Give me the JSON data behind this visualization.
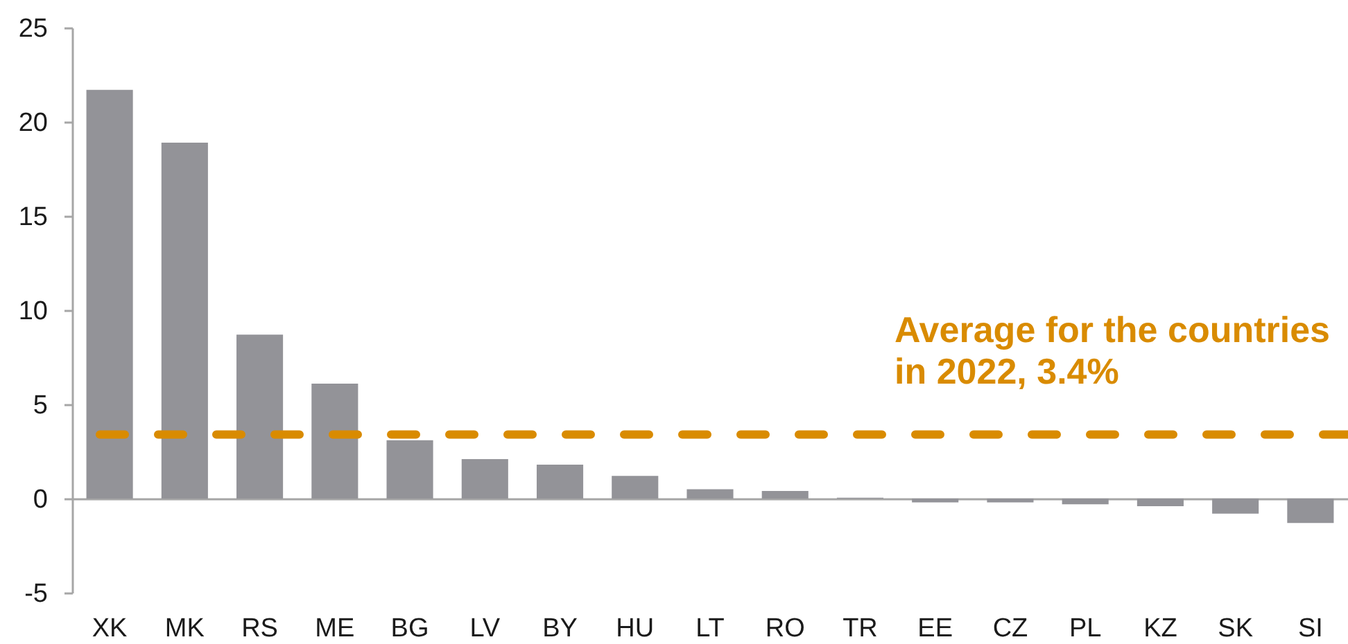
{
  "chart_data": {
    "type": "bar",
    "categories": [
      "XK",
      "MK",
      "RS",
      "ME",
      "BG",
      "LV",
      "BY",
      "HU",
      "LT",
      "RO",
      "TR",
      "EE",
      "CZ",
      "PL",
      "KZ",
      "SK",
      "SI"
    ],
    "values": [
      21.7,
      18.9,
      8.7,
      6.1,
      3.1,
      2.1,
      1.8,
      1.2,
      0.5,
      0.4,
      0.05,
      -0.2,
      -0.2,
      -0.3,
      -0.4,
      -0.8,
      -1.3
    ],
    "color": "#939398",
    "ylim": [
      -5,
      25
    ],
    "yticks": [
      -5,
      0,
      5,
      10,
      15,
      20,
      25
    ],
    "ref_lines": [
      {
        "axis": "y",
        "value": 3.4,
        "label": "Average for the countries\nin 2022, 3.4%",
        "color": "#d98b00",
        "line_style": "dashed"
      }
    ]
  }
}
